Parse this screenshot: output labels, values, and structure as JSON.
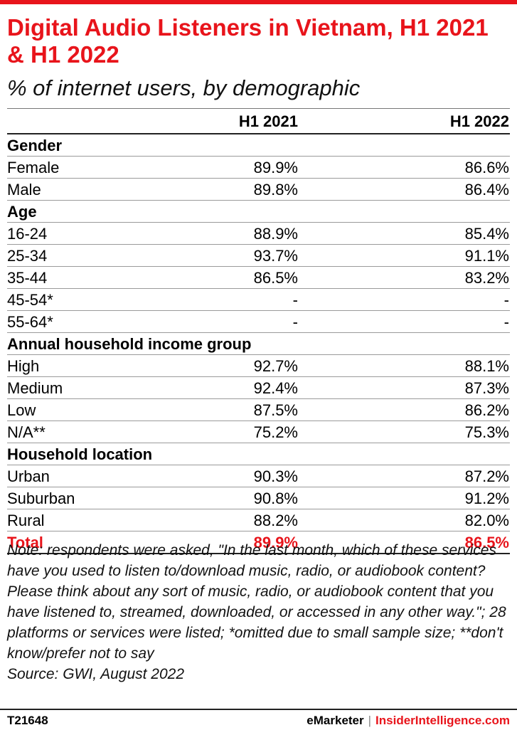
{
  "header": {
    "title": "Digital Audio Listeners in Vietnam, H1 2021 & H1 2022",
    "subtitle": "% of internet users, by demographic"
  },
  "colors": {
    "accent": "#e8141b",
    "text": "#000000",
    "rule": "#9a9a9a"
  },
  "chart_data": {
    "type": "table",
    "title": "Digital Audio Listeners in Vietnam, H1 2021 & H1 2022",
    "subtitle": "% of internet users, by demographic",
    "columns": [
      "H1 2021",
      "H1 2022"
    ],
    "rows": [
      {
        "label": "Gender",
        "section": true,
        "values": [
          "",
          ""
        ]
      },
      {
        "label": "Female",
        "values": [
          "89.9%",
          "86.6%"
        ]
      },
      {
        "label": "Male",
        "values": [
          "89.8%",
          "86.4%"
        ]
      },
      {
        "label": "Age",
        "section": true,
        "values": [
          "",
          ""
        ]
      },
      {
        "label": "16-24",
        "values": [
          "88.9%",
          "85.4%"
        ]
      },
      {
        "label": "25-34",
        "values": [
          "93.7%",
          "91.1%"
        ]
      },
      {
        "label": "35-44",
        "values": [
          "86.5%",
          "83.2%"
        ]
      },
      {
        "label": "45-54*",
        "values": [
          "-",
          "-"
        ]
      },
      {
        "label": "55-64*",
        "values": [
          "-",
          "-"
        ]
      },
      {
        "label": "Annual household income group",
        "section": true,
        "values": [
          "",
          ""
        ]
      },
      {
        "label": "High",
        "values": [
          "92.7%",
          "88.1%"
        ]
      },
      {
        "label": "Medium",
        "values": [
          "92.4%",
          "87.3%"
        ]
      },
      {
        "label": "Low",
        "values": [
          "87.5%",
          "86.2%"
        ]
      },
      {
        "label": "N/A**",
        "values": [
          "75.2%",
          "75.3%"
        ]
      },
      {
        "label": "Household location",
        "section": true,
        "values": [
          "",
          ""
        ]
      },
      {
        "label": "Urban",
        "values": [
          "90.3%",
          "87.2%"
        ]
      },
      {
        "label": "Suburban",
        "values": [
          "90.8%",
          "91.2%"
        ]
      },
      {
        "label": "Rural",
        "values": [
          "88.2%",
          "82.0%"
        ]
      },
      {
        "label": "Total",
        "total": true,
        "values": [
          "89.9%",
          "86.5%"
        ]
      }
    ]
  },
  "notes": {
    "note": "Note: respondents were asked, \"In the last month, which of these services have you used to listen to/download music, radio, or audiobook content? Please think about any sort of music, radio, or audiobook content that you have listened to, streamed, downloaded, or accessed in any other way.\"; 28 platforms or services were listed; *omitted due to small sample size; **don't know/prefer not to say",
    "source": "Source: GWI, August 2022"
  },
  "footer": {
    "code": "T21648",
    "brand_left": "eMarketer",
    "separator": "|",
    "brand_right": "InsiderIntelligence.com"
  }
}
